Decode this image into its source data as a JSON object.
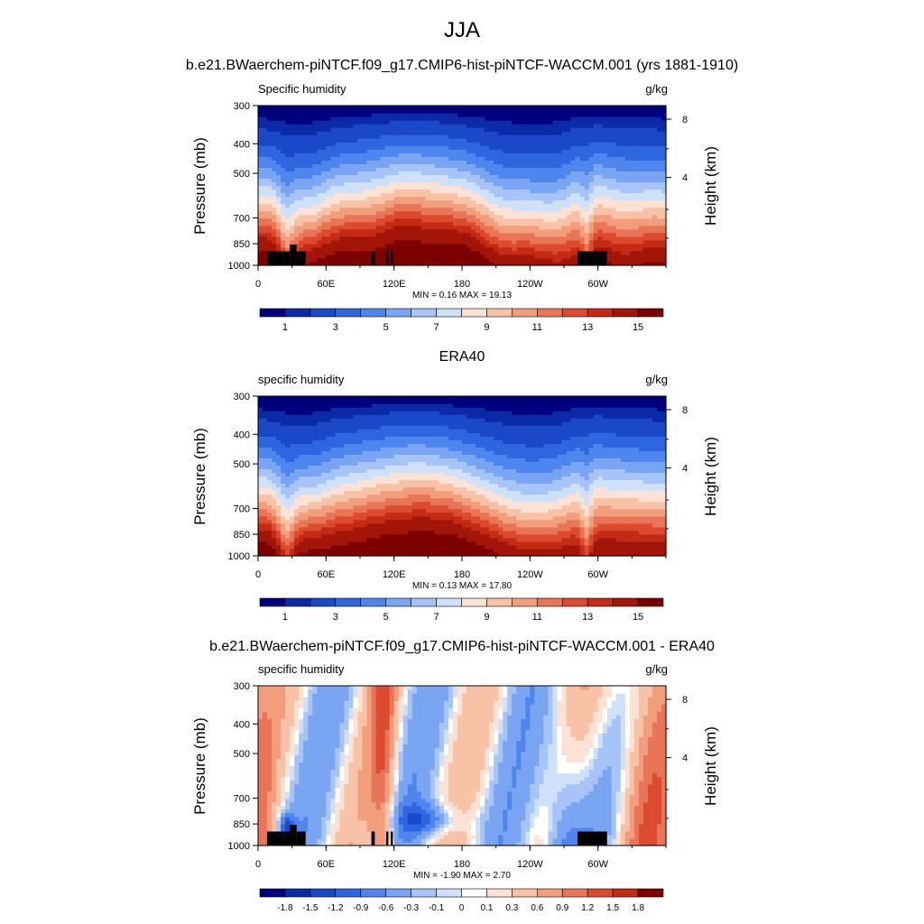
{
  "figure_title": "JJA",
  "palette_full": [
    "#00007f",
    "#0a2aa8",
    "#1a48c9",
    "#2f66e0",
    "#4f86ee",
    "#7aa5f3",
    "#a6c4f7",
    "#cfe0f9",
    "#fbe2d4",
    "#f8c2a6",
    "#f29e7d",
    "#e97559",
    "#dc4a2f",
    "#c52a14",
    "#a21509",
    "#7c0000"
  ],
  "palette_diff": [
    "#00007f",
    "#0a2aa8",
    "#1a48c9",
    "#2f66e0",
    "#4f86ee",
    "#7aa5f3",
    "#a6c4f7",
    "#cfe0f9",
    "#ffffff",
    "#fbe2d4",
    "#f8c2a6",
    "#f29e7d",
    "#e97559",
    "#dc4a2f",
    "#c52a14",
    "#7c0000"
  ],
  "chart_data": [
    {
      "type": "heatmap",
      "title": "b.e21.BWaerchem-piNTCF.f09_g17.CMIP6-hist-piNTCF-WACCM.001 (yrs 1881-1910)",
      "left_string": "Specific humidity",
      "right_string": "g/kg",
      "ylabel": "Pressure (mb)",
      "ylabel_right": "Height (km)",
      "xticks": [
        "0",
        "60E",
        "120E",
        "180",
        "120W",
        "60W"
      ],
      "yticks": [
        "300",
        "400",
        "500",
        "700",
        "850",
        "1000"
      ],
      "yticks_right": [
        "8",
        "4"
      ],
      "minmax": "MIN =   0.16  MAX =   19.13",
      "min": 0.16,
      "max": 19.13,
      "colorbar_labels": [
        "1",
        "3",
        "5",
        "7",
        "9",
        "11",
        "13",
        "15"
      ],
      "kind": "field",
      "topography": true
    },
    {
      "type": "heatmap",
      "title": "ERA40",
      "left_string": "specific humidity",
      "right_string": "g/kg",
      "ylabel": "Pressure (mb)",
      "ylabel_right": "Height (km)",
      "xticks": [
        "0",
        "60E",
        "120E",
        "180",
        "120W",
        "60W"
      ],
      "yticks": [
        "300",
        "400",
        "500",
        "700",
        "850",
        "1000"
      ],
      "yticks_right": [
        "8",
        "4"
      ],
      "minmax": "MIN =   0.13  MAX =   17.80",
      "min": 0.13,
      "max": 17.8,
      "colorbar_labels": [
        "1",
        "3",
        "5",
        "7",
        "9",
        "11",
        "13",
        "15"
      ],
      "kind": "field",
      "topography": false
    },
    {
      "type": "heatmap",
      "title": "b.e21.BWaerchem-piNTCF.f09_g17.CMIP6-hist-piNTCF-WACCM.001 - ERA40",
      "left_string": "specific humidity",
      "right_string": "g/kg",
      "ylabel": "Pressure (mb)",
      "ylabel_right": "Height (km)",
      "xticks": [
        "0",
        "60E",
        "120E",
        "180",
        "120W",
        "60W"
      ],
      "yticks": [
        "300",
        "400",
        "500",
        "700",
        "850",
        "1000"
      ],
      "yticks_right": [
        "8",
        "4"
      ],
      "minmax": "MIN =  -1.90  MAX =   2.70",
      "min": -1.9,
      "max": 2.7,
      "colorbar_labels": [
        "-1.8",
        "-1.5",
        "-1.2",
        "-0.9",
        "-0.6",
        "-0.3",
        "-0.1",
        "0",
        "0.1",
        "0.3",
        "0.6",
        "0.9",
        "1.2",
        "1.5",
        "1.8"
      ],
      "kind": "diff",
      "topography": true
    }
  ]
}
